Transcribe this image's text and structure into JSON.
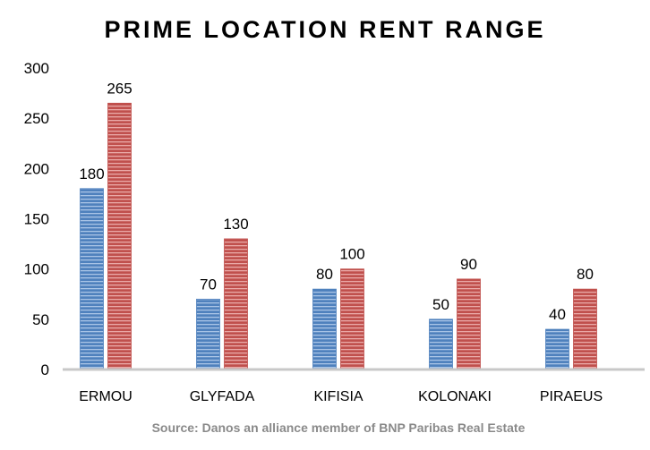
{
  "chart_data": {
    "type": "bar",
    "title": "PRIME LOCATION RENT RANGE",
    "categories": [
      "ERMOU",
      "GLYFADA",
      "KIFISIA",
      "KOLONAKI",
      "PIRAEUS"
    ],
    "series": [
      {
        "name": "Min",
        "values": [
          180,
          70,
          80,
          50,
          40
        ],
        "color": "#4f81bd"
      },
      {
        "name": "Max",
        "values": [
          265,
          130,
          100,
          90,
          80
        ],
        "color": "#c0504d"
      }
    ],
    "yticks": [
      0,
      50,
      100,
      150,
      200,
      250,
      300
    ],
    "ylim": [
      0,
      300
    ],
    "xlabel": "",
    "ylabel": "",
    "grid": false,
    "legend": "none",
    "source": "Source: Danos an alliance member of BNP Paribas Real Estate"
  }
}
